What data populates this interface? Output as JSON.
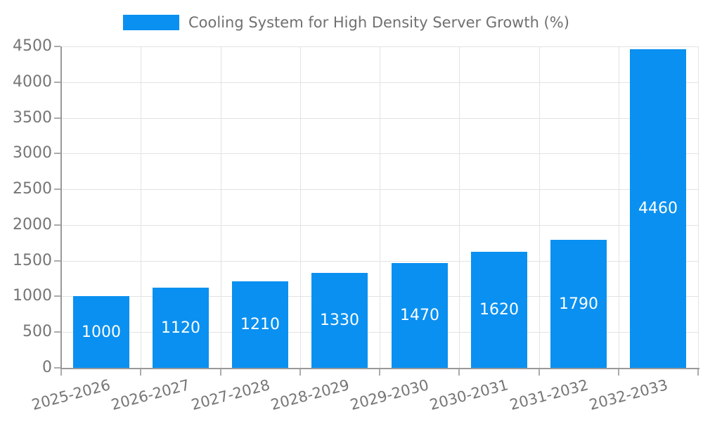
{
  "chart_data": {
    "type": "bar",
    "title": "Cooling System for High Density Server Growth (%)",
    "categories": [
      "2025-2026",
      "2026-2027",
      "2027-2028",
      "2028-2029",
      "2029-2030",
      "2030-2031",
      "2031-2032",
      "2032-2033"
    ],
    "values": [
      1000,
      1120,
      1210,
      1330,
      1470,
      1620,
      1790,
      4460
    ],
    "xlabel": "",
    "ylabel": "",
    "ylim": [
      0,
      4500
    ],
    "yticks": [
      0,
      500,
      1000,
      1500,
      2000,
      2500,
      3000,
      3500,
      4000,
      4500
    ],
    "grid": true,
    "legend_position": "top-center",
    "value_labels": "inside-center",
    "colors": {
      "bar": "#0a90f0",
      "bar_label": "#ffffff",
      "axis_text": "#757575",
      "title_text": "#707070",
      "grid_line": "#e3e3e3",
      "axis_line": "#999999",
      "tick_line": "#ababab",
      "background": "#ffffff"
    }
  }
}
